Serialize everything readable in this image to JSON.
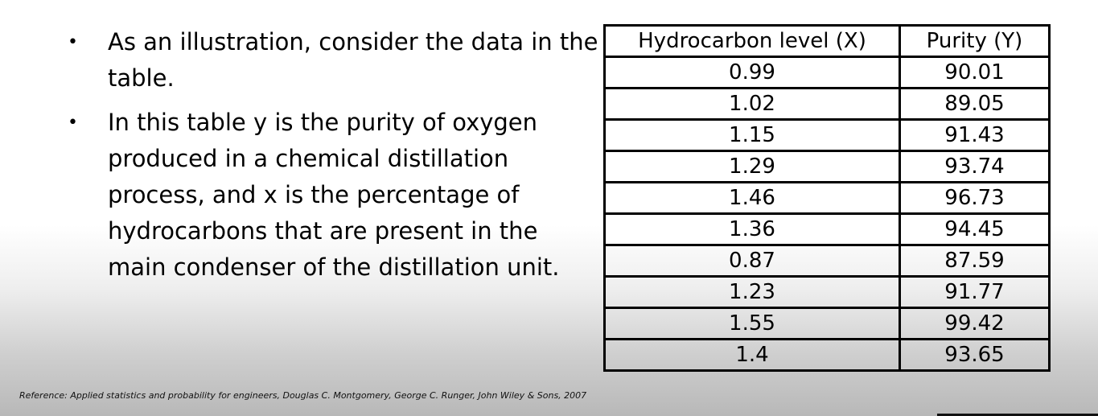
{
  "bullets": [
    "As an illustration, consider the data in the table.",
    "In this table y is the purity of oxygen produced in a chemical distillation process, and x is the percentage of hydrocarbons that are present in the main condenser of the distillation unit."
  ],
  "bullet_symbol": "•",
  "table": {
    "headers": [
      "Hydrocarbon level (X)",
      "Purity (Y)"
    ],
    "rows": [
      [
        "0.99",
        "90.01"
      ],
      [
        "1.02",
        "89.05"
      ],
      [
        "1.15",
        "91.43"
      ],
      [
        "1.29",
        "93.74"
      ],
      [
        "1.46",
        "96.73"
      ],
      [
        "1.36",
        "94.45"
      ],
      [
        "0.87",
        "87.59"
      ],
      [
        "1.23",
        "91.77"
      ],
      [
        "1.55",
        "99.42"
      ],
      [
        "1.4",
        "93.65"
      ]
    ]
  },
  "reference": "Reference: Applied statistics and probability for engineers, Douglas C. Montgomery, George C. Runger, John Wiley & Sons, 2007"
}
